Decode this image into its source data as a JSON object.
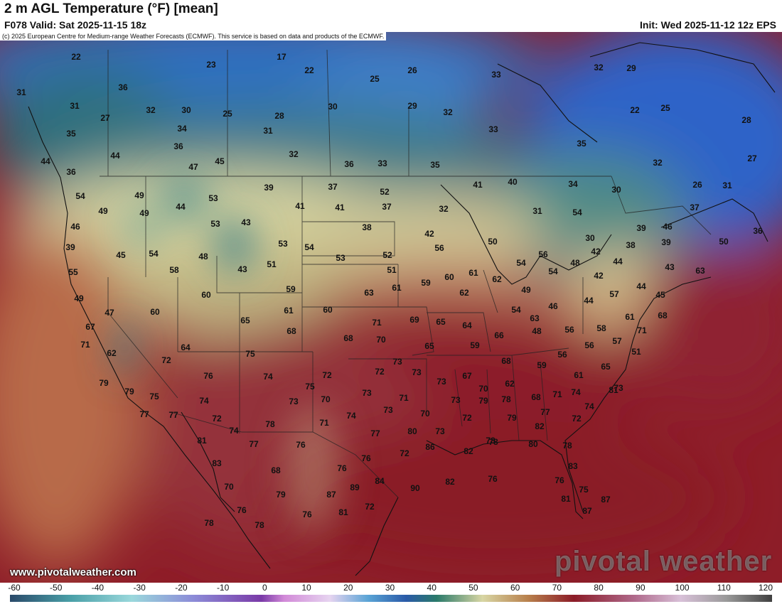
{
  "header": {
    "title": "2 m AGL Temperature (°F) [mean]",
    "valid": "F078 Valid: Sat 2025-11-15 18z",
    "init": "Init: Wed 2025-11-12 12z EPS"
  },
  "copyright": "(c) 2025 European Centre for Medium-range Weather Forecasts (ECMWF). This service is based on data and products of the ECMWF.",
  "site_url": "www.pivotalweather.com",
  "brand": "pivotal weather",
  "colorbar": {
    "ticks": [
      "-60",
      "-50",
      "-40",
      "-30",
      "-20",
      "-10",
      "0",
      "10",
      "20",
      "30",
      "40",
      "50",
      "60",
      "70",
      "80",
      "90",
      "100",
      "110",
      "120"
    ]
  },
  "map_values": [
    "22",
    "23",
    "17",
    "22",
    "25",
    "26",
    "33",
    "31",
    "36",
    "31",
    "32",
    "30",
    "25",
    "28",
    "30",
    "29",
    "32",
    "32",
    "29",
    "27",
    "22",
    "25",
    "28",
    "35",
    "34",
    "31",
    "33",
    "35",
    "36",
    "44",
    "44",
    "36",
    "32",
    "33",
    "35",
    "32",
    "27",
    "36",
    "49",
    "49",
    "47",
    "45",
    "37",
    "41",
    "34",
    "30",
    "26",
    "31",
    "54",
    "49",
    "44",
    "53",
    "39",
    "41",
    "40",
    "41",
    "37",
    "32",
    "31",
    "37",
    "52",
    "54",
    "46",
    "53",
    "43",
    "38",
    "39",
    "46",
    "42",
    "30",
    "38",
    "36",
    "39",
    "53",
    "54",
    "45",
    "54",
    "48",
    "53",
    "43",
    "51",
    "52",
    "51",
    "56",
    "50",
    "54",
    "56",
    "54",
    "48",
    "42",
    "44",
    "39",
    "50",
    "55",
    "58",
    "60",
    "59",
    "61",
    "59",
    "60",
    "61",
    "62",
    "49",
    "42",
    "44",
    "43",
    "63",
    "49",
    "47",
    "60",
    "63",
    "62",
    "60",
    "65",
    "61",
    "54",
    "46",
    "44",
    "45",
    "57",
    "68",
    "67",
    "68",
    "68",
    "70",
    "71",
    "69",
    "65",
    "64",
    "66",
    "48",
    "63",
    "56",
    "61",
    "58",
    "71",
    "71",
    "64",
    "65",
    "59",
    "56",
    "56",
    "57",
    "51",
    "62",
    "72",
    "75",
    "76",
    "74",
    "72",
    "72",
    "73",
    "73",
    "67",
    "68",
    "59",
    "61",
    "65",
    "73",
    "79",
    "79",
    "75",
    "75",
    "70",
    "73",
    "71",
    "73",
    "70",
    "62",
    "68",
    "71",
    "74",
    "81",
    "77",
    "77",
    "74",
    "72",
    "73",
    "74",
    "73",
    "70",
    "73",
    "79",
    "78",
    "79",
    "77",
    "72",
    "74",
    "74",
    "78",
    "71",
    "77",
    "80",
    "73",
    "72",
    "78",
    "82",
    "78",
    "81",
    "77",
    "76",
    "72",
    "76",
    "86",
    "78",
    "82",
    "80",
    "83",
    "68",
    "76",
    "90",
    "82",
    "76",
    "83",
    "70",
    "79",
    "87",
    "89",
    "84",
    "76",
    "75",
    "87",
    "76",
    "76",
    "81",
    "72",
    "81",
    "87",
    "78",
    "78"
  ],
  "map_grid": {
    "labels": [
      "",
      "",
      "",
      "",
      "",
      ""
    ]
  }
}
